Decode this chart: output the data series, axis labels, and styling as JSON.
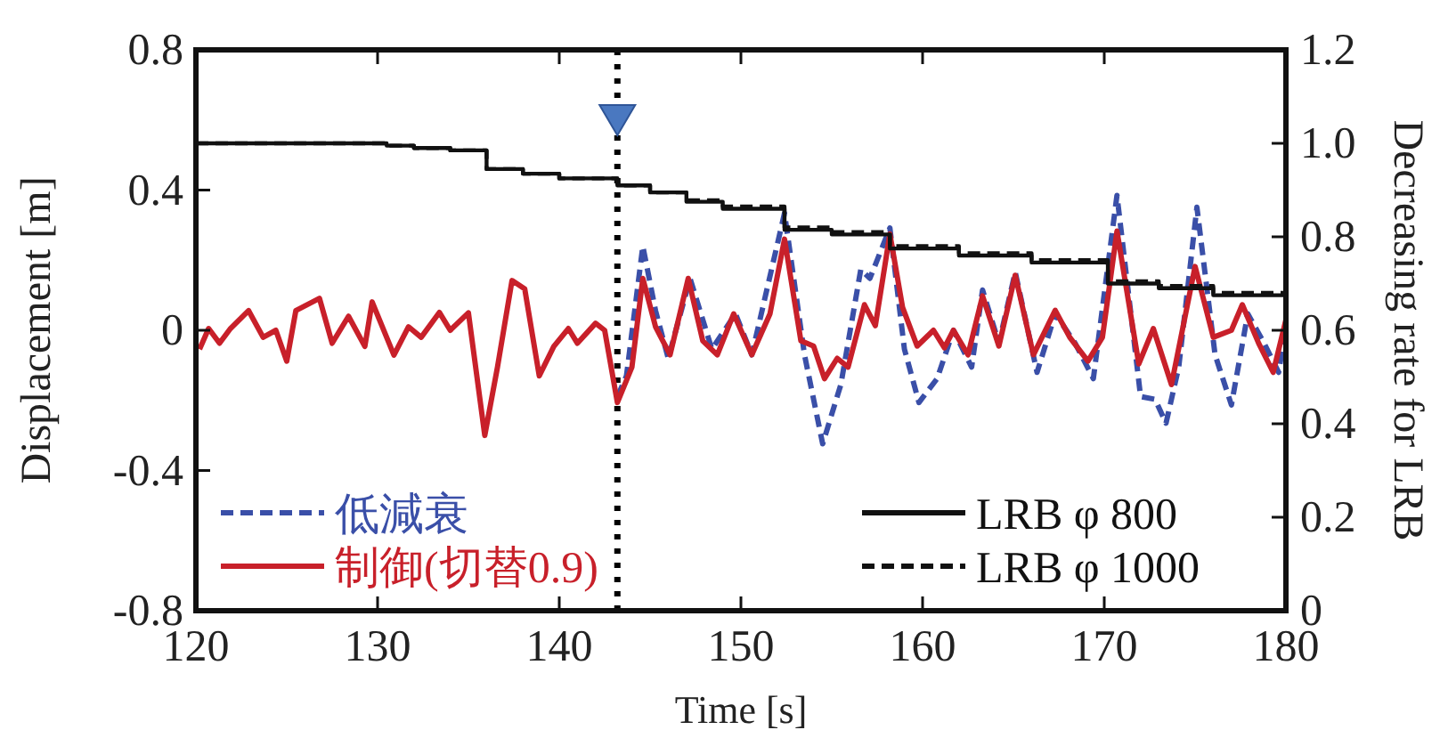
{
  "chart_data": {
    "type": "line",
    "xlabel": "Time [s]",
    "ylabel": "Displacement [m]",
    "y2label": "Decreasing rate for LRB",
    "xlim": [
      120,
      180
    ],
    "xticks": [
      120,
      130,
      140,
      150,
      160,
      170,
      180
    ],
    "ylim": [
      -0.8,
      0.8
    ],
    "yticks": [
      -0.8,
      -0.4,
      0,
      0.4,
      0.8
    ],
    "y2lim": [
      0,
      1.2
    ],
    "y2ticks": [
      0,
      0.2,
      0.4,
      0.6,
      0.8,
      {
        "value": 1,
        "label": "1.0"
      },
      1.2
    ],
    "grid": false,
    "legend": "bottom",
    "ref_lines": [
      {
        "axis": "x",
        "value": 143.2,
        "line_style": "dotted",
        "color": "#000000"
      }
    ],
    "series": [
      {
        "name": "低減衰",
        "color": "#3a4fa8",
        "line_style": "dashed",
        "x": [
          143.2,
          143.7,
          144.6,
          145.3,
          146,
          147.2,
          148.4,
          149.7,
          150.6,
          152.4,
          153.5,
          154.5,
          155.5,
          156.6,
          157.1,
          158.2,
          159,
          159.8,
          160.8,
          161.7,
          162.7,
          163.3,
          164.2,
          165.1,
          166.3,
          167.3,
          168.4,
          169.4,
          170.7,
          172,
          172.8,
          173.4,
          174.1,
          175.1,
          176.1,
          177,
          177.9,
          178.8,
          179.6,
          180
        ],
        "values": [
          -0.19,
          -0.13,
          0.24,
          0.056,
          -0.08,
          0.148,
          -0.054,
          0.047,
          -0.07,
          0.334,
          -0.07,
          -0.324,
          -0.155,
          0.174,
          0.148,
          0.292,
          -0.054,
          -0.206,
          -0.138,
          0,
          -0.105,
          0.115,
          -0.037,
          0.166,
          -0.12,
          0.047,
          -0.037,
          -0.138,
          0.385,
          -0.189,
          -0.197,
          -0.265,
          -0.105,
          0.351,
          -0.07,
          -0.213,
          0.047,
          -0.037,
          -0.12,
          0.01
        ]
      },
      {
        "name": "制御(切替0.9)",
        "color": "#c8202a",
        "line_style": "solid",
        "x": [
          120.2,
          120.7,
          121.3,
          121.9,
          122.9,
          123.7,
          124.4,
          125,
          125.5,
          126.8,
          127.5,
          128.4,
          129.3,
          129.7,
          130.9,
          131.7,
          132.4,
          133.4,
          134,
          135,
          135.9,
          136.6,
          137.4,
          138.1,
          138.9,
          139.7,
          140.5,
          141,
          142,
          142.5,
          143.2,
          144,
          144.6,
          145.3,
          146.1,
          147.1,
          147.9,
          148.7,
          149.6,
          150.6,
          151.6,
          152.4,
          153.3,
          154,
          154.6,
          155.3,
          155.9,
          156.8,
          157.4,
          158.2,
          158.9,
          159.7,
          160.6,
          161.2,
          161.7,
          162.5,
          163.3,
          164.2,
          165.1,
          166.1,
          167.3,
          168.1,
          169.1,
          169.9,
          170.7,
          171.9,
          172.7,
          173.7,
          175,
          176,
          177,
          177.6,
          178.5,
          179.3,
          180
        ],
        "values": [
          -0.054,
          0.005,
          -0.037,
          0.005,
          0.056,
          -0.02,
          0,
          -0.088,
          0.056,
          0.091,
          -0.037,
          0.04,
          -0.046,
          0.081,
          -0.071,
          0.01,
          -0.02,
          0.051,
          0,
          0.05,
          -0.3,
          -0.105,
          0.142,
          0.118,
          -0.13,
          -0.046,
          0.005,
          -0.037,
          0.02,
          0,
          -0.206,
          -0.105,
          0.148,
          0.01,
          -0.07,
          0.148,
          -0.03,
          -0.07,
          0.047,
          -0.07,
          0.047,
          0.26,
          -0.03,
          -0.045,
          -0.138,
          -0.08,
          -0.105,
          0.073,
          0.013,
          0.275,
          0.065,
          -0.045,
          0,
          -0.05,
          0,
          -0.07,
          0.098,
          -0.045,
          0.157,
          -0.07,
          0.057,
          -0.02,
          -0.088,
          -0.02,
          0.283,
          -0.096,
          0.005,
          -0.155,
          0.182,
          -0.02,
          0,
          0.073,
          -0.037,
          -0.12,
          0.03
        ]
      },
      {
        "name": "LRB φ 800",
        "type": "step",
        "axis": "y2",
        "color": "#111111",
        "line_style": "solid",
        "x": [
          120,
          130.5,
          132,
          134,
          136,
          138,
          140,
          143.2,
          145,
          147,
          149,
          152.4,
          155,
          158.2,
          162,
          166,
          170.2,
          173,
          176,
          180
        ],
        "values": [
          1.0,
          0.995,
          0.99,
          0.985,
          0.945,
          0.935,
          0.925,
          0.91,
          0.895,
          0.875,
          0.86,
          0.815,
          0.805,
          0.775,
          0.76,
          0.745,
          0.7,
          0.69,
          0.675,
          0.655
        ]
      },
      {
        "name": "LRB φ 1000",
        "type": "step",
        "axis": "y2",
        "color": "#111111",
        "line_style": "dashed",
        "x": [
          120,
          130.5,
          132,
          134,
          136,
          138,
          140,
          143.2,
          145,
          147,
          149,
          152.4,
          155,
          158.2,
          162,
          166,
          170.2,
          173,
          176,
          180
        ],
        "values": [
          1.0,
          0.995,
          0.99,
          0.985,
          0.945,
          0.935,
          0.925,
          0.91,
          0.895,
          0.878,
          0.865,
          0.82,
          0.81,
          0.78,
          0.765,
          0.75,
          0.705,
          0.695,
          0.68,
          0.66
        ]
      }
    ]
  }
}
